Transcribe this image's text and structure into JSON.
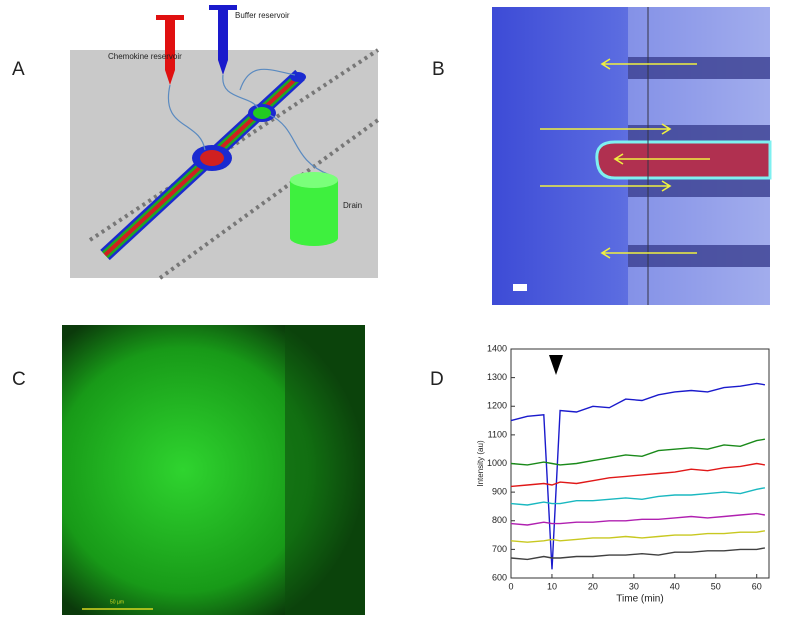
{
  "panel_labels": [
    "A",
    "B",
    "C",
    "D"
  ],
  "panel_a": {
    "chemokine_label": "Chemokine reservoir",
    "buffer_label": "Buffer reservoir",
    "drain_label": "Drain"
  },
  "panel_c": {
    "scale_bar_label": "50 µm"
  },
  "chart_data": {
    "type": "line",
    "xlabel": "Time (min)",
    "ylabel": "Intensity (au)",
    "x": [
      0,
      4,
      8,
      10,
      12,
      16,
      20,
      24,
      28,
      32,
      36,
      40,
      44,
      48,
      52,
      56,
      60,
      62
    ],
    "xlim": [
      0,
      63
    ],
    "xticks": [
      0,
      10,
      20,
      30,
      40,
      50,
      60
    ],
    "ylim": [
      600,
      1400
    ],
    "yticks": [
      600,
      700,
      800,
      900,
      1000,
      1100,
      1200,
      1300,
      1400
    ],
    "grid": false,
    "series": [
      {
        "color": "#1a1acc",
        "values": [
          1150,
          1165,
          1170,
          630,
          1185,
          1180,
          1200,
          1195,
          1225,
          1220,
          1240,
          1250,
          1255,
          1250,
          1265,
          1270,
          1280,
          1275
        ]
      },
      {
        "color": "#1a8a1a",
        "values": [
          1000,
          995,
          1005,
          1000,
          995,
          1000,
          1010,
          1020,
          1030,
          1025,
          1045,
          1050,
          1055,
          1050,
          1065,
          1060,
          1080,
          1085
        ]
      },
      {
        "color": "#e01818",
        "values": [
          920,
          925,
          930,
          925,
          935,
          930,
          940,
          950,
          955,
          960,
          965,
          970,
          980,
          975,
          985,
          990,
          1000,
          995
        ]
      },
      {
        "color": "#1ab8c0",
        "values": [
          860,
          855,
          865,
          860,
          860,
          870,
          870,
          875,
          880,
          875,
          885,
          890,
          890,
          895,
          900,
          895,
          910,
          915
        ]
      },
      {
        "color": "#b020b0",
        "values": [
          790,
          785,
          795,
          790,
          790,
          795,
          795,
          800,
          800,
          805,
          805,
          810,
          815,
          810,
          815,
          820,
          825,
          820
        ]
      },
      {
        "color": "#c8c820",
        "values": [
          730,
          725,
          730,
          735,
          730,
          735,
          740,
          740,
          745,
          740,
          745,
          750,
          750,
          755,
          755,
          760,
          760,
          765
        ]
      },
      {
        "color": "#404040",
        "values": [
          670,
          665,
          675,
          670,
          670,
          675,
          675,
          680,
          680,
          685,
          680,
          690,
          690,
          695,
          695,
          700,
          700,
          705
        ]
      }
    ]
  }
}
